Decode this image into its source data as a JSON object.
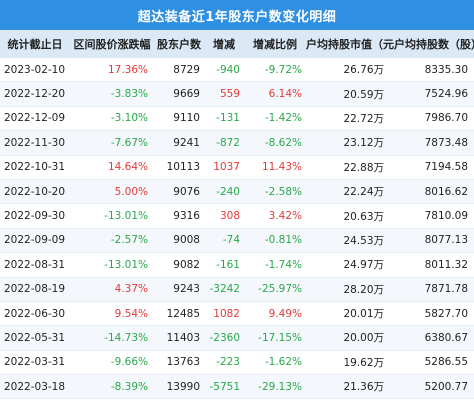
{
  "title": "超达装备近1年股东户数变化明细",
  "headers": [
    "统计截止日",
    "区间股价涨跌幅",
    "股东户数",
    "增减",
    "增减比例",
    "户均持股市值（元）",
    "户均持股数（股）"
  ],
  "rows": [
    {
      "date": "2023-02-10",
      "price_change": "17.36%",
      "holders": "8729",
      "delta": "-940",
      "delta_pct": "-9.72%",
      "avg_value": "26.76万",
      "avg_shares": "8335.30"
    },
    {
      "date": "2022-12-20",
      "price_change": "-3.83%",
      "holders": "9669",
      "delta": "559",
      "delta_pct": "6.14%",
      "avg_value": "20.59万",
      "avg_shares": "7524.96"
    },
    {
      "date": "2022-12-09",
      "price_change": "-3.10%",
      "holders": "9110",
      "delta": "-131",
      "delta_pct": "-1.42%",
      "avg_value": "22.72万",
      "avg_shares": "7986.70"
    },
    {
      "date": "2022-11-30",
      "price_change": "-7.67%",
      "holders": "9241",
      "delta": "-872",
      "delta_pct": "-8.62%",
      "avg_value": "23.12万",
      "avg_shares": "7873.48"
    },
    {
      "date": "2022-10-31",
      "price_change": "14.64%",
      "holders": "10113",
      "delta": "1037",
      "delta_pct": "11.43%",
      "avg_value": "22.88万",
      "avg_shares": "7194.58"
    },
    {
      "date": "2022-10-20",
      "price_change": "5.00%",
      "holders": "9076",
      "delta": "-240",
      "delta_pct": "-2.58%",
      "avg_value": "22.24万",
      "avg_shares": "8016.62"
    },
    {
      "date": "2022-09-30",
      "price_change": "-13.01%",
      "holders": "9316",
      "delta": "308",
      "delta_pct": "3.42%",
      "avg_value": "20.63万",
      "avg_shares": "7810.09"
    },
    {
      "date": "2022-09-09",
      "price_change": "-2.57%",
      "holders": "9008",
      "delta": "-74",
      "delta_pct": "-0.81%",
      "avg_value": "24.53万",
      "avg_shares": "8077.13"
    },
    {
      "date": "2022-08-31",
      "price_change": "-13.01%",
      "holders": "9082",
      "delta": "-161",
      "delta_pct": "-1.74%",
      "avg_value": "24.97万",
      "avg_shares": "8011.32"
    },
    {
      "date": "2022-08-19",
      "price_change": "4.37%",
      "holders": "9243",
      "delta": "-3242",
      "delta_pct": "-25.97%",
      "avg_value": "28.20万",
      "avg_shares": "7871.78"
    },
    {
      "date": "2022-06-30",
      "price_change": "9.54%",
      "holders": "12485",
      "delta": "1082",
      "delta_pct": "9.49%",
      "avg_value": "20.01万",
      "avg_shares": "5827.70"
    },
    {
      "date": "2022-05-31",
      "price_change": "-14.73%",
      "holders": "11403",
      "delta": "-2360",
      "delta_pct": "-17.15%",
      "avg_value": "20.00万",
      "avg_shares": "6380.67"
    },
    {
      "date": "2022-03-31",
      "price_change": "-9.66%",
      "holders": "13763",
      "delta": "-223",
      "delta_pct": "-1.62%",
      "avg_value": "19.62万",
      "avg_shares": "5286.55"
    },
    {
      "date": "2022-03-18",
      "price_change": "-8.39%",
      "holders": "13990",
      "delta": "-5751",
      "delta_pct": "-29.13%",
      "avg_value": "21.36万",
      "avg_shares": "5200.77"
    }
  ],
  "colors": {
    "title_bg": "#2f8fe3",
    "header_bg": "#dbe9f7",
    "positive": "#e23a3a",
    "negative": "#2aa84a"
  }
}
